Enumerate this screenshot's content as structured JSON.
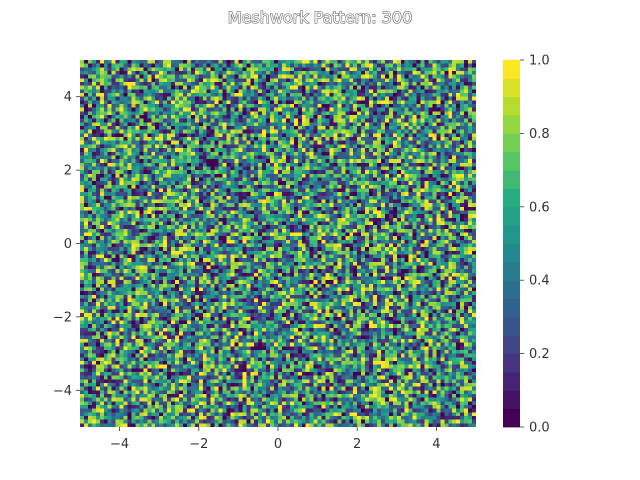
{
  "chart_data": {
    "type": "heatmap",
    "title": "Meshwork Pattern: 300",
    "xlabel": "",
    "ylabel": "",
    "xlim": [
      -5,
      5
    ],
    "ylim": [
      -5,
      5
    ],
    "x_ticks": [
      "−4",
      "−2",
      "0",
      "2",
      "4"
    ],
    "y_ticks": [
      "4",
      "2",
      "0",
      "−2",
      "−4"
    ],
    "grid": {
      "columns": 100,
      "rows": 100
    },
    "values": "uniform random in [0, 1] (“meshwork” noise, seed 300)",
    "colormap": "viridis",
    "colorbar": {
      "range": [
        0,
        1
      ],
      "ticks": [
        "0.0",
        "0.2",
        "0.4",
        "0.6",
        "0.8",
        "1.0"
      ],
      "levels": 20
    },
    "grid_lines": false,
    "legend": "none"
  }
}
